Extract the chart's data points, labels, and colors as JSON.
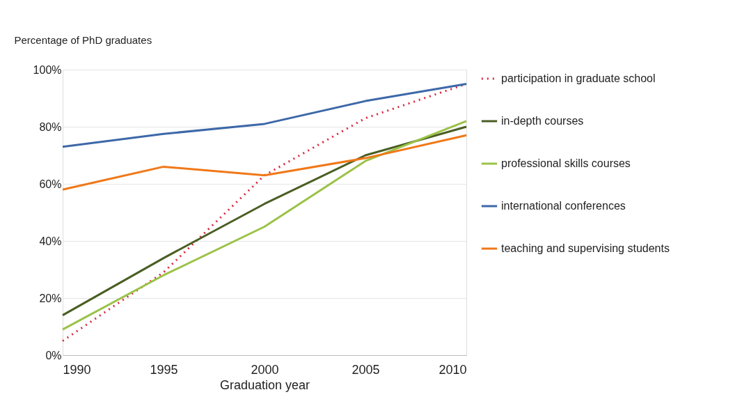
{
  "chart_data": {
    "type": "line",
    "xlabel": "Graduation year",
    "ylabel": "Percentage of PhD graduates",
    "x": [
      1990,
      1995,
      2000,
      2005,
      2010
    ],
    "xlim": [
      1990,
      2010
    ],
    "xticks": [
      1990,
      1995,
      2000,
      2005,
      2010
    ],
    "ylim": [
      0,
      100
    ],
    "yticks": [
      {
        "value": 0,
        "label": "0%"
      },
      {
        "value": 20,
        "label": "20%"
      },
      {
        "value": 40,
        "label": "40%"
      },
      {
        "value": 60,
        "label": "60%"
      },
      {
        "value": 80,
        "label": "80%"
      },
      {
        "value": 100,
        "label": "100%"
      }
    ],
    "grid": "y",
    "legend": "right",
    "marker": "none",
    "series": [
      {
        "name": "participation in graduate school",
        "color": "#d7263d",
        "line_style": "dotted",
        "values": [
          5,
          29,
          63,
          83,
          95
        ]
      },
      {
        "name": "in-depth courses",
        "color": "#4a5e23",
        "line_style": "solid",
        "values": [
          14,
          34,
          53,
          70,
          80
        ]
      },
      {
        "name": "professional skills courses",
        "color": "#9bc247",
        "line_style": "solid",
        "values": [
          9,
          28,
          45,
          68,
          82
        ]
      },
      {
        "name": "international conferences",
        "color": "#3d68a8",
        "line_style": "solid",
        "values": [
          73,
          77.5,
          81,
          89,
          95
        ]
      },
      {
        "name": "teaching and supervising students",
        "color": "#f07818",
        "line_style": "solid",
        "values": [
          58,
          66,
          63,
          69,
          77
        ]
      }
    ]
  }
}
